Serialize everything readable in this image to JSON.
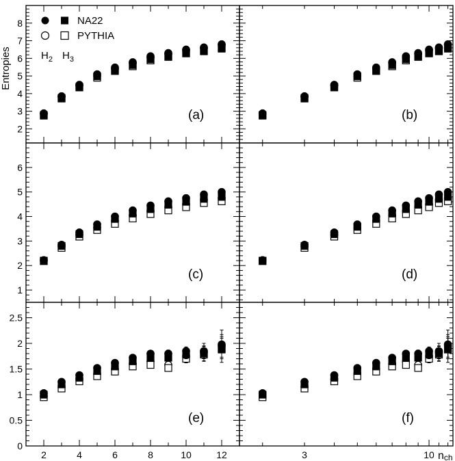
{
  "figure": {
    "ylabel": "Entropies",
    "legend": {
      "data_label": "NA22",
      "mc_label": "PYTHIA",
      "h2_label": "H",
      "h2_sub": "2",
      "h3_label": "H",
      "h3_sub": "3"
    },
    "xlabel_main": "n",
    "xlabel_sub": "ch"
  },
  "chart_data": [
    {
      "type": "scatter",
      "panel": "(a)",
      "xscale": "linear",
      "xlim": [
        1,
        13
      ],
      "ylim": [
        1.2,
        9.0
      ],
      "yticks": [
        2,
        3,
        4,
        5,
        6,
        7,
        8
      ],
      "x": [
        2,
        3,
        4,
        5,
        6,
        7,
        8,
        9,
        10,
        11,
        12
      ],
      "series": [
        {
          "name": "NA22 H2",
          "marker": "filled-circle",
          "values": [
            2.88,
            3.85,
            4.5,
            5.1,
            5.48,
            5.78,
            6.12,
            6.3,
            6.5,
            6.62,
            6.78
          ]
        },
        {
          "name": "NA22 H3",
          "marker": "filled-square",
          "values": [
            2.78,
            3.75,
            4.38,
            4.98,
            5.32,
            5.62,
            5.95,
            6.12,
            6.3,
            6.42,
            6.58
          ]
        },
        {
          "name": "PYTHIA H2",
          "marker": "open-circle",
          "values": [
            2.85,
            3.82,
            4.45,
            5.0,
            5.4,
            5.72,
            6.05,
            6.25,
            6.45,
            6.58,
            6.8
          ]
        },
        {
          "name": "PYTHIA H3",
          "marker": "open-square",
          "values": [
            2.75,
            3.72,
            4.35,
            4.9,
            5.28,
            5.55,
            5.88,
            6.08,
            6.28,
            6.4,
            6.55
          ]
        }
      ]
    },
    {
      "type": "scatter",
      "panel": "(b)",
      "xscale": "log",
      "xlim": [
        1.6,
        12.6
      ],
      "ylim": [
        1.2,
        9.0
      ],
      "yticks": [
        2,
        3,
        4,
        5,
        6,
        7,
        8
      ],
      "x": [
        2,
        3,
        4,
        5,
        6,
        7,
        8,
        9,
        10,
        11,
        12
      ],
      "series": [
        {
          "name": "NA22 H2",
          "marker": "filled-circle",
          "values": [
            2.88,
            3.85,
            4.5,
            5.1,
            5.48,
            5.78,
            6.12,
            6.3,
            6.5,
            6.62,
            6.78
          ]
        },
        {
          "name": "NA22 H3",
          "marker": "filled-square",
          "values": [
            2.78,
            3.75,
            4.38,
            4.98,
            5.32,
            5.62,
            5.95,
            6.12,
            6.3,
            6.42,
            6.58
          ]
        },
        {
          "name": "PYTHIA H2",
          "marker": "open-circle",
          "values": [
            2.85,
            3.82,
            4.45,
            5.0,
            5.4,
            5.72,
            6.05,
            6.25,
            6.45,
            6.58,
            6.8
          ]
        },
        {
          "name": "PYTHIA H3",
          "marker": "open-square",
          "values": [
            2.75,
            3.72,
            4.35,
            4.9,
            5.28,
            5.55,
            5.88,
            6.08,
            6.28,
            6.4,
            6.55
          ]
        }
      ]
    },
    {
      "type": "scatter",
      "panel": "(c)",
      "xscale": "linear",
      "xlim": [
        1,
        13
      ],
      "ylim": [
        0.5,
        7.0
      ],
      "yticks": [
        1,
        2,
        3,
        4,
        5,
        6
      ],
      "x": [
        2,
        3,
        4,
        5,
        6,
        7,
        8,
        9,
        10,
        11,
        12
      ],
      "series": [
        {
          "name": "NA22 H2",
          "marker": "filled-circle",
          "values": [
            2.22,
            2.85,
            3.35,
            3.68,
            4.0,
            4.25,
            4.45,
            4.62,
            4.75,
            4.9,
            5.0
          ]
        },
        {
          "name": "NA22 H3",
          "marker": "filled-square",
          "values": [
            2.2,
            2.8,
            3.28,
            3.58,
            3.9,
            4.12,
            4.3,
            4.48,
            4.6,
            4.72,
            4.8
          ]
        },
        {
          "name": "PYTHIA H2",
          "marker": "open-circle",
          "values": [
            2.2,
            2.78,
            3.25,
            3.55,
            3.82,
            4.05,
            4.22,
            4.38,
            4.5,
            4.68,
            4.75
          ]
        },
        {
          "name": "PYTHIA H3",
          "marker": "open-square",
          "values": [
            2.18,
            2.72,
            3.18,
            3.45,
            3.7,
            3.92,
            4.1,
            4.25,
            4.38,
            4.55,
            4.62
          ]
        }
      ]
    },
    {
      "type": "scatter",
      "panel": "(d)",
      "xscale": "log",
      "xlim": [
        1.6,
        12.6
      ],
      "ylim": [
        0.5,
        7.0
      ],
      "yticks": [
        1,
        2,
        3,
        4,
        5,
        6
      ],
      "x": [
        2,
        3,
        4,
        5,
        6,
        7,
        8,
        9,
        10,
        11,
        12
      ],
      "series": [
        {
          "name": "NA22 H2",
          "marker": "filled-circle",
          "values": [
            2.22,
            2.85,
            3.35,
            3.68,
            4.0,
            4.25,
            4.45,
            4.62,
            4.75,
            4.9,
            5.0
          ]
        },
        {
          "name": "NA22 H3",
          "marker": "filled-square",
          "values": [
            2.2,
            2.8,
            3.28,
            3.58,
            3.9,
            4.12,
            4.3,
            4.48,
            4.6,
            4.72,
            4.8
          ]
        },
        {
          "name": "PYTHIA H2",
          "marker": "open-circle",
          "values": [
            2.2,
            2.78,
            3.25,
            3.55,
            3.82,
            4.05,
            4.22,
            4.38,
            4.5,
            4.68,
            4.75
          ]
        },
        {
          "name": "PYTHIA H3",
          "marker": "open-square",
          "values": [
            2.18,
            2.72,
            3.18,
            3.45,
            3.7,
            3.92,
            4.1,
            4.25,
            4.38,
            4.55,
            4.62
          ]
        }
      ]
    },
    {
      "type": "scatter",
      "panel": "(e)",
      "xscale": "linear",
      "xlim": [
        1,
        13
      ],
      "ylim": [
        0,
        2.8
      ],
      "yticks": [
        0,
        0.5,
        1,
        1.5,
        2,
        2.5
      ],
      "xticks": [
        2,
        4,
        6,
        8,
        10,
        12
      ],
      "x": [
        2,
        3,
        4,
        5,
        6,
        7,
        8,
        9,
        10,
        11,
        12
      ],
      "series": [
        {
          "name": "NA22 H2",
          "marker": "filled-circle",
          "values": [
            1.03,
            1.25,
            1.38,
            1.52,
            1.62,
            1.72,
            1.8,
            1.8,
            1.85,
            1.85,
            1.98
          ],
          "errors": [
            0.03,
            0.03,
            0.03,
            0.04,
            0.04,
            0.05,
            0.05,
            0.07,
            0.08,
            0.15,
            0.28
          ]
        },
        {
          "name": "NA22 H3",
          "marker": "filled-square",
          "values": [
            1.0,
            1.2,
            1.33,
            1.46,
            1.55,
            1.65,
            1.72,
            1.72,
            1.78,
            1.8,
            1.88
          ],
          "errors": [
            0.03,
            0.03,
            0.03,
            0.04,
            0.04,
            0.05,
            0.05,
            0.07,
            0.08,
            0.15,
            0.25
          ]
        },
        {
          "name": "PYTHIA H2",
          "marker": "open-circle",
          "values": [
            0.97,
            1.15,
            1.3,
            1.4,
            1.5,
            1.6,
            1.65,
            1.58,
            1.75,
            1.82,
            1.95
          ],
          "errors": [
            0.02,
            0.02,
            0.03,
            0.03,
            0.04,
            0.04,
            0.05,
            0.06,
            0.08,
            0.12,
            0.22
          ]
        },
        {
          "name": "PYTHIA H3",
          "marker": "open-square",
          "values": [
            0.95,
            1.12,
            1.26,
            1.36,
            1.45,
            1.55,
            1.58,
            1.52,
            1.7,
            1.78,
            1.9
          ],
          "errors": [
            0.02,
            0.02,
            0.03,
            0.03,
            0.04,
            0.04,
            0.05,
            0.06,
            0.08,
            0.12,
            0.2
          ]
        }
      ]
    },
    {
      "type": "scatter",
      "panel": "(f)",
      "xscale": "log",
      "xlim": [
        1.6,
        12.6
      ],
      "ylim": [
        0,
        2.8
      ],
      "yticks": [
        0,
        0.5,
        1,
        1.5,
        2,
        2.5
      ],
      "xticks": [
        3,
        10
      ],
      "x": [
        2,
        3,
        4,
        5,
        6,
        7,
        8,
        9,
        10,
        11,
        12
      ],
      "series": [
        {
          "name": "NA22 H2",
          "marker": "filled-circle",
          "values": [
            1.03,
            1.25,
            1.38,
            1.52,
            1.62,
            1.72,
            1.8,
            1.8,
            1.85,
            1.85,
            1.98
          ],
          "errors": [
            0.03,
            0.03,
            0.03,
            0.04,
            0.04,
            0.05,
            0.05,
            0.07,
            0.08,
            0.15,
            0.28
          ]
        },
        {
          "name": "NA22 H3",
          "marker": "filled-square",
          "values": [
            1.0,
            1.2,
            1.33,
            1.46,
            1.55,
            1.65,
            1.72,
            1.72,
            1.78,
            1.8,
            1.88
          ],
          "errors": [
            0.03,
            0.03,
            0.03,
            0.04,
            0.04,
            0.05,
            0.05,
            0.07,
            0.08,
            0.15,
            0.25
          ]
        },
        {
          "name": "PYTHIA H2",
          "marker": "open-circle",
          "values": [
            0.97,
            1.15,
            1.3,
            1.4,
            1.5,
            1.6,
            1.65,
            1.58,
            1.75,
            1.82,
            1.95
          ],
          "errors": [
            0.02,
            0.02,
            0.03,
            0.03,
            0.04,
            0.04,
            0.05,
            0.06,
            0.08,
            0.12,
            0.22
          ]
        },
        {
          "name": "PYTHIA H3",
          "marker": "open-square",
          "values": [
            0.95,
            1.12,
            1.26,
            1.36,
            1.45,
            1.55,
            1.58,
            1.52,
            1.7,
            1.78,
            1.9
          ],
          "errors": [
            0.02,
            0.02,
            0.03,
            0.03,
            0.04,
            0.04,
            0.05,
            0.06,
            0.08,
            0.12,
            0.2
          ]
        }
      ]
    }
  ]
}
